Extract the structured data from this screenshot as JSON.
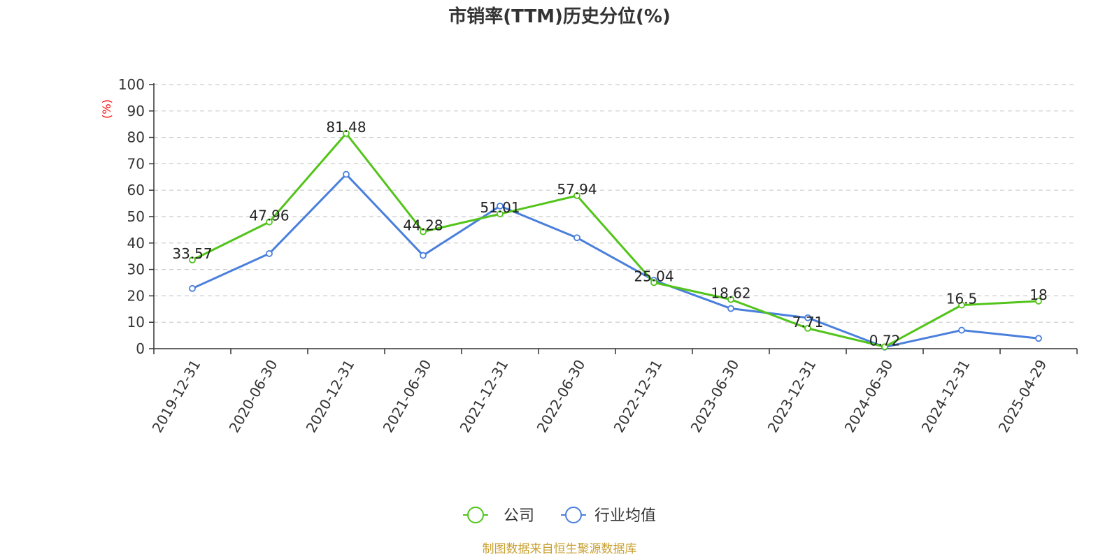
{
  "chart_data": {
    "type": "line",
    "title": "市销率(TTM)历史分位(%)",
    "ylabel": "(%)",
    "xlabel": "",
    "categories": [
      "2019-12-31",
      "2020-06-30",
      "2020-12-31",
      "2021-06-30",
      "2021-12-31",
      "2022-06-30",
      "2022-12-31",
      "2023-06-30",
      "2023-12-31",
      "2024-06-30",
      "2024-12-31",
      "2025-04-29"
    ],
    "ylim": [
      0,
      100
    ],
    "yticks": [
      0,
      10,
      20,
      30,
      40,
      50,
      60,
      70,
      80,
      90,
      100
    ],
    "grid": true,
    "legend_position": "bottom-center",
    "series": [
      {
        "name": "公司",
        "color": "#52c41a",
        "values": [
          33.57,
          47.96,
          81.48,
          44.28,
          51.01,
          57.94,
          25.04,
          18.62,
          7.71,
          0.72,
          16.5,
          18
        ],
        "labels": [
          "33.57",
          "47.96",
          "81.48",
          "44.28",
          "51.01",
          "57.94",
          "25.04",
          "18.62",
          "7.71",
          "0.72",
          "16.5",
          "18"
        ]
      },
      {
        "name": "行业均值",
        "color": "#4a7fdc",
        "values": [
          22.8,
          36,
          66,
          35.3,
          54,
          42,
          25.9,
          15.2,
          11.7,
          0.6,
          7,
          3.9
        ]
      }
    ]
  },
  "colors": {
    "unit_label": "#ff0000",
    "source": "#c8a032",
    "axis": "#333333",
    "grid": "#cccccc"
  },
  "source": "制图数据来自恒生聚源数据库"
}
